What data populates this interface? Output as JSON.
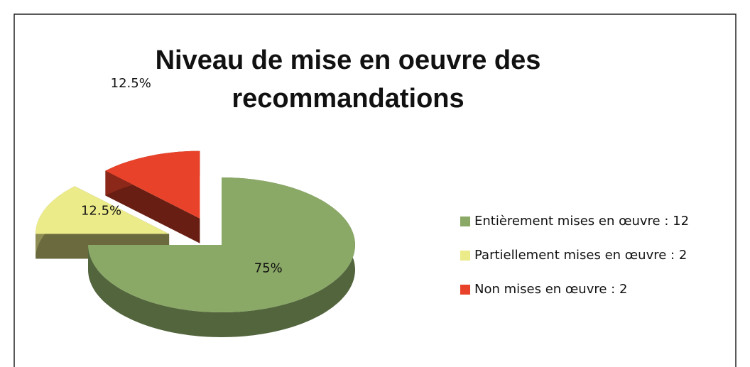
{
  "chart_data": {
    "type": "pie3d",
    "title": "Niveau de mise en oeuvre des recommandations",
    "categories": [
      "Entièrement mises en œuvre : 12",
      "Partiellement mises en œuvre : 2",
      "Non mises en œuvre : 2"
    ],
    "values": [
      75,
      12.5,
      12.5
    ],
    "value_labels": [
      "75%",
      "12.5%",
      "12.5%"
    ],
    "colors": [
      "#8aa866",
      "#eceb8a",
      "#e8432a"
    ],
    "exploded": [
      false,
      true,
      true
    ]
  }
}
